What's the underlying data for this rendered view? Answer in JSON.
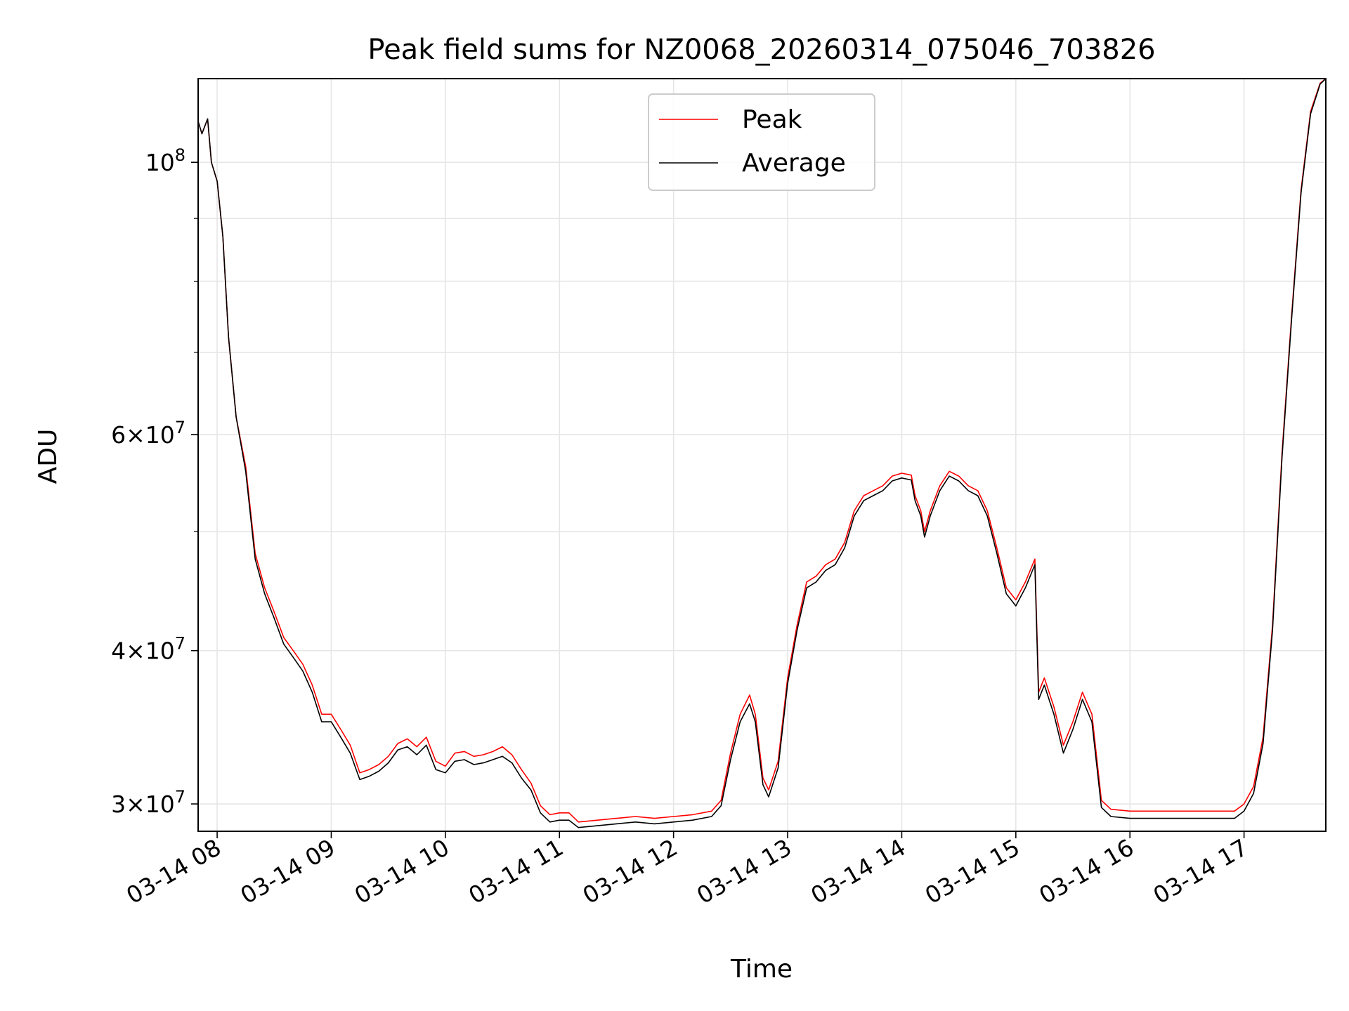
{
  "chart_data": {
    "type": "line",
    "title": "Peak field sums for NZ0068_20260314_075046_703826",
    "xlabel": "Time",
    "ylabel": "ADU",
    "y_scale": "log",
    "grid": true,
    "legend_position": "upper center",
    "xlim": [
      "2026-03-14 07:50",
      "2026-03-14 17:43"
    ],
    "ylim": [
      28500000,
      117000000
    ],
    "x_ticks": [
      {
        "value": "2026-03-14 08:00",
        "label": "03-14 08"
      },
      {
        "value": "2026-03-14 09:00",
        "label": "03-14 09"
      },
      {
        "value": "2026-03-14 10:00",
        "label": "03-14 10"
      },
      {
        "value": "2026-03-14 11:00",
        "label": "03-14 11"
      },
      {
        "value": "2026-03-14 12:00",
        "label": "03-14 12"
      },
      {
        "value": "2026-03-14 13:00",
        "label": "03-14 13"
      },
      {
        "value": "2026-03-14 14:00",
        "label": "03-14 14"
      },
      {
        "value": "2026-03-14 15:00",
        "label": "03-14 15"
      },
      {
        "value": "2026-03-14 16:00",
        "label": "03-14 16"
      },
      {
        "value": "2026-03-14 17:00",
        "label": "03-14 17"
      }
    ],
    "y_ticks": [
      {
        "value": 30000000,
        "mantissa": "3",
        "exponent": "7"
      },
      {
        "value": 40000000,
        "mantissa": "4",
        "exponent": "7"
      },
      {
        "value": 60000000,
        "mantissa": "6",
        "exponent": "7"
      },
      {
        "value": 100000000,
        "mantissa": "",
        "exponent": "8"
      }
    ],
    "y_minor_ticks": [
      50000000,
      70000000,
      80000000,
      90000000
    ],
    "series": [
      {
        "name": "Peak",
        "color": "#ff0000",
        "points": [
          [
            "2026-03-14 07:50",
            108000000
          ],
          [
            "2026-03-14 07:52",
            105500000
          ],
          [
            "2026-03-14 07:55",
            108500000
          ],
          [
            "2026-03-14 07:57",
            100000000
          ],
          [
            "2026-03-14 08:00",
            96500000
          ],
          [
            "2026-03-14 08:03",
            87000000
          ],
          [
            "2026-03-14 08:06",
            72000000
          ],
          [
            "2026-03-14 08:10",
            62000000
          ],
          [
            "2026-03-14 08:15",
            56500000
          ],
          [
            "2026-03-14 08:20",
            48000000
          ],
          [
            "2026-03-14 08:25",
            45000000
          ],
          [
            "2026-03-14 08:30",
            43000000
          ],
          [
            "2026-03-14 08:35",
            41000000
          ],
          [
            "2026-03-14 08:40",
            40000000
          ],
          [
            "2026-03-14 08:45",
            39000000
          ],
          [
            "2026-03-14 08:50",
            37500000
          ],
          [
            "2026-03-14 08:55",
            35500000
          ],
          [
            "2026-03-14 09:00",
            35500000
          ],
          [
            "2026-03-14 09:05",
            34500000
          ],
          [
            "2026-03-14 09:10",
            33500000
          ],
          [
            "2026-03-14 09:15",
            31800000
          ],
          [
            "2026-03-14 09:20",
            32000000
          ],
          [
            "2026-03-14 09:25",
            32300000
          ],
          [
            "2026-03-14 09:30",
            32800000
          ],
          [
            "2026-03-14 09:35",
            33600000
          ],
          [
            "2026-03-14 09:40",
            33900000
          ],
          [
            "2026-03-14 09:45",
            33400000
          ],
          [
            "2026-03-14 09:50",
            34000000
          ],
          [
            "2026-03-14 09:55",
            32500000
          ],
          [
            "2026-03-14 10:00",
            32200000
          ],
          [
            "2026-03-14 10:05",
            33000000
          ],
          [
            "2026-03-14 10:10",
            33100000
          ],
          [
            "2026-03-14 10:15",
            32800000
          ],
          [
            "2026-03-14 10:20",
            32900000
          ],
          [
            "2026-03-14 10:25",
            33100000
          ],
          [
            "2026-03-14 10:30",
            33400000
          ],
          [
            "2026-03-14 10:35",
            32900000
          ],
          [
            "2026-03-14 10:40",
            32000000
          ],
          [
            "2026-03-14 10:45",
            31200000
          ],
          [
            "2026-03-14 10:50",
            29900000
          ],
          [
            "2026-03-14 10:55",
            29400000
          ],
          [
            "2026-03-14 11:00",
            29500000
          ],
          [
            "2026-03-14 11:05",
            29500000
          ],
          [
            "2026-03-14 11:10",
            29000000
          ],
          [
            "2026-03-14 11:20",
            29100000
          ],
          [
            "2026-03-14 11:30",
            29200000
          ],
          [
            "2026-03-14 11:40",
            29300000
          ],
          [
            "2026-03-14 11:50",
            29200000
          ],
          [
            "2026-03-14 12:00",
            29300000
          ],
          [
            "2026-03-14 12:10",
            29400000
          ],
          [
            "2026-03-14 12:20",
            29600000
          ],
          [
            "2026-03-14 12:25",
            30200000
          ],
          [
            "2026-03-14 12:30",
            33000000
          ],
          [
            "2026-03-14 12:35",
            35500000
          ],
          [
            "2026-03-14 12:40",
            36800000
          ],
          [
            "2026-03-14 12:43",
            35500000
          ],
          [
            "2026-03-14 12:47",
            31500000
          ],
          [
            "2026-03-14 12:50",
            30800000
          ],
          [
            "2026-03-14 12:55",
            32500000
          ],
          [
            "2026-03-14 13:00",
            38000000
          ],
          [
            "2026-03-14 13:05",
            42000000
          ],
          [
            "2026-03-14 13:10",
            45500000
          ],
          [
            "2026-03-14 13:15",
            46000000
          ],
          [
            "2026-03-14 13:20",
            47000000
          ],
          [
            "2026-03-14 13:25",
            47500000
          ],
          [
            "2026-03-14 13:30",
            49000000
          ],
          [
            "2026-03-14 13:35",
            52000000
          ],
          [
            "2026-03-14 13:40",
            53500000
          ],
          [
            "2026-03-14 13:45",
            54000000
          ],
          [
            "2026-03-14 13:50",
            54500000
          ],
          [
            "2026-03-14 13:55",
            55500000
          ],
          [
            "2026-03-14 14:00",
            55800000
          ],
          [
            "2026-03-14 14:05",
            55600000
          ],
          [
            "2026-03-14 14:07",
            53500000
          ],
          [
            "2026-03-14 14:10",
            52000000
          ],
          [
            "2026-03-14 14:12",
            50000000
          ],
          [
            "2026-03-14 14:15",
            52000000
          ],
          [
            "2026-03-14 14:20",
            54500000
          ],
          [
            "2026-03-14 14:25",
            56000000
          ],
          [
            "2026-03-14 14:30",
            55500000
          ],
          [
            "2026-03-14 14:35",
            54500000
          ],
          [
            "2026-03-14 14:40",
            54000000
          ],
          [
            "2026-03-14 14:45",
            52000000
          ],
          [
            "2026-03-14 14:50",
            48500000
          ],
          [
            "2026-03-14 14:55",
            45000000
          ],
          [
            "2026-03-14 15:00",
            44000000
          ],
          [
            "2026-03-14 15:05",
            45500000
          ],
          [
            "2026-03-14 15:10",
            47500000
          ],
          [
            "2026-03-14 15:12",
            37000000
          ],
          [
            "2026-03-14 15:15",
            38000000
          ],
          [
            "2026-03-14 15:20",
            36000000
          ],
          [
            "2026-03-14 15:25",
            33500000
          ],
          [
            "2026-03-14 15:30",
            35000000
          ],
          [
            "2026-03-14 15:35",
            37000000
          ],
          [
            "2026-03-14 15:40",
            35500000
          ],
          [
            "2026-03-14 15:45",
            30200000
          ],
          [
            "2026-03-14 15:50",
            29700000
          ],
          [
            "2026-03-14 16:00",
            29600000
          ],
          [
            "2026-03-14 16:20",
            29600000
          ],
          [
            "2026-03-14 16:40",
            29600000
          ],
          [
            "2026-03-14 16:55",
            29600000
          ],
          [
            "2026-03-14 17:00",
            30000000
          ],
          [
            "2026-03-14 17:05",
            31000000
          ],
          [
            "2026-03-14 17:10",
            34000000
          ],
          [
            "2026-03-14 17:15",
            42000000
          ],
          [
            "2026-03-14 17:20",
            58000000
          ],
          [
            "2026-03-14 17:25",
            75000000
          ],
          [
            "2026-03-14 17:30",
            95000000
          ],
          [
            "2026-03-14 17:35",
            110000000
          ],
          [
            "2026-03-14 17:40",
            116000000
          ],
          [
            "2026-03-14 17:43",
            117000000
          ]
        ]
      },
      {
        "name": "Average",
        "color": "#000000",
        "points": [
          [
            "2026-03-14 07:50",
            108000000
          ],
          [
            "2026-03-14 07:52",
            105500000
          ],
          [
            "2026-03-14 07:55",
            108500000
          ],
          [
            "2026-03-14 07:57",
            100000000
          ],
          [
            "2026-03-14 08:00",
            96500000
          ],
          [
            "2026-03-14 08:03",
            87000000
          ],
          [
            "2026-03-14 08:06",
            72000000
          ],
          [
            "2026-03-14 08:10",
            62000000
          ],
          [
            "2026-03-14 08:15",
            56000000
          ],
          [
            "2026-03-14 08:20",
            47500000
          ],
          [
            "2026-03-14 08:25",
            44500000
          ],
          [
            "2026-03-14 08:30",
            42500000
          ],
          [
            "2026-03-14 08:35",
            40500000
          ],
          [
            "2026-03-14 08:40",
            39500000
          ],
          [
            "2026-03-14 08:45",
            38500000
          ],
          [
            "2026-03-14 08:50",
            37000000
          ],
          [
            "2026-03-14 08:55",
            35000000
          ],
          [
            "2026-03-14 09:00",
            35000000
          ],
          [
            "2026-03-14 09:05",
            34000000
          ],
          [
            "2026-03-14 09:10",
            33000000
          ],
          [
            "2026-03-14 09:15",
            31400000
          ],
          [
            "2026-03-14 09:20",
            31600000
          ],
          [
            "2026-03-14 09:25",
            31900000
          ],
          [
            "2026-03-14 09:30",
            32400000
          ],
          [
            "2026-03-14 09:35",
            33200000
          ],
          [
            "2026-03-14 09:40",
            33400000
          ],
          [
            "2026-03-14 09:45",
            32900000
          ],
          [
            "2026-03-14 09:50",
            33500000
          ],
          [
            "2026-03-14 09:55",
            32000000
          ],
          [
            "2026-03-14 10:00",
            31800000
          ],
          [
            "2026-03-14 10:05",
            32500000
          ],
          [
            "2026-03-14 10:10",
            32600000
          ],
          [
            "2026-03-14 10:15",
            32300000
          ],
          [
            "2026-03-14 10:20",
            32400000
          ],
          [
            "2026-03-14 10:25",
            32600000
          ],
          [
            "2026-03-14 10:30",
            32800000
          ],
          [
            "2026-03-14 10:35",
            32400000
          ],
          [
            "2026-03-14 10:40",
            31500000
          ],
          [
            "2026-03-14 10:45",
            30800000
          ],
          [
            "2026-03-14 10:50",
            29500000
          ],
          [
            "2026-03-14 10:55",
            29000000
          ],
          [
            "2026-03-14 11:00",
            29100000
          ],
          [
            "2026-03-14 11:05",
            29100000
          ],
          [
            "2026-03-14 11:10",
            28700000
          ],
          [
            "2026-03-14 11:20",
            28800000
          ],
          [
            "2026-03-14 11:30",
            28900000
          ],
          [
            "2026-03-14 11:40",
            29000000
          ],
          [
            "2026-03-14 11:50",
            28900000
          ],
          [
            "2026-03-14 12:00",
            29000000
          ],
          [
            "2026-03-14 12:10",
            29100000
          ],
          [
            "2026-03-14 12:20",
            29300000
          ],
          [
            "2026-03-14 12:25",
            29900000
          ],
          [
            "2026-03-14 12:30",
            32600000
          ],
          [
            "2026-03-14 12:35",
            35000000
          ],
          [
            "2026-03-14 12:40",
            36200000
          ],
          [
            "2026-03-14 12:43",
            35000000
          ],
          [
            "2026-03-14 12:47",
            31100000
          ],
          [
            "2026-03-14 12:50",
            30400000
          ],
          [
            "2026-03-14 12:55",
            32100000
          ],
          [
            "2026-03-14 13:00",
            37600000
          ],
          [
            "2026-03-14 13:05",
            41600000
          ],
          [
            "2026-03-14 13:10",
            45000000
          ],
          [
            "2026-03-14 13:15",
            45500000
          ],
          [
            "2026-03-14 13:20",
            46500000
          ],
          [
            "2026-03-14 13:25",
            47000000
          ],
          [
            "2026-03-14 13:30",
            48500000
          ],
          [
            "2026-03-14 13:35",
            51500000
          ],
          [
            "2026-03-14 13:40",
            53000000
          ],
          [
            "2026-03-14 13:45",
            53500000
          ],
          [
            "2026-03-14 13:50",
            54000000
          ],
          [
            "2026-03-14 13:55",
            55000000
          ],
          [
            "2026-03-14 14:00",
            55300000
          ],
          [
            "2026-03-14 14:05",
            55100000
          ],
          [
            "2026-03-14 14:07",
            53000000
          ],
          [
            "2026-03-14 14:10",
            51500000
          ],
          [
            "2026-03-14 14:12",
            49500000
          ],
          [
            "2026-03-14 14:15",
            51500000
          ],
          [
            "2026-03-14 14:20",
            54000000
          ],
          [
            "2026-03-14 14:25",
            55500000
          ],
          [
            "2026-03-14 14:30",
            55000000
          ],
          [
            "2026-03-14 14:35",
            54000000
          ],
          [
            "2026-03-14 14:40",
            53500000
          ],
          [
            "2026-03-14 14:45",
            51500000
          ],
          [
            "2026-03-14 14:50",
            48000000
          ],
          [
            "2026-03-14 14:55",
            44500000
          ],
          [
            "2026-03-14 15:00",
            43500000
          ],
          [
            "2026-03-14 15:05",
            45000000
          ],
          [
            "2026-03-14 15:10",
            47000000
          ],
          [
            "2026-03-14 15:12",
            36500000
          ],
          [
            "2026-03-14 15:15",
            37500000
          ],
          [
            "2026-03-14 15:20",
            35500000
          ],
          [
            "2026-03-14 15:25",
            33000000
          ],
          [
            "2026-03-14 15:30",
            34500000
          ],
          [
            "2026-03-14 15:35",
            36500000
          ],
          [
            "2026-03-14 15:40",
            35000000
          ],
          [
            "2026-03-14 15:45",
            29800000
          ],
          [
            "2026-03-14 15:50",
            29300000
          ],
          [
            "2026-03-14 16:00",
            29200000
          ],
          [
            "2026-03-14 16:20",
            29200000
          ],
          [
            "2026-03-14 16:40",
            29200000
          ],
          [
            "2026-03-14 16:55",
            29200000
          ],
          [
            "2026-03-14 17:00",
            29600000
          ],
          [
            "2026-03-14 17:05",
            30600000
          ],
          [
            "2026-03-14 17:10",
            33600000
          ],
          [
            "2026-03-14 17:15",
            41600000
          ],
          [
            "2026-03-14 17:20",
            57500000
          ],
          [
            "2026-03-14 17:25",
            74500000
          ],
          [
            "2026-03-14 17:30",
            94500000
          ],
          [
            "2026-03-14 17:35",
            109500000
          ],
          [
            "2026-03-14 17:40",
            115800000
          ],
          [
            "2026-03-14 17:43",
            117000000
          ]
        ]
      }
    ]
  }
}
